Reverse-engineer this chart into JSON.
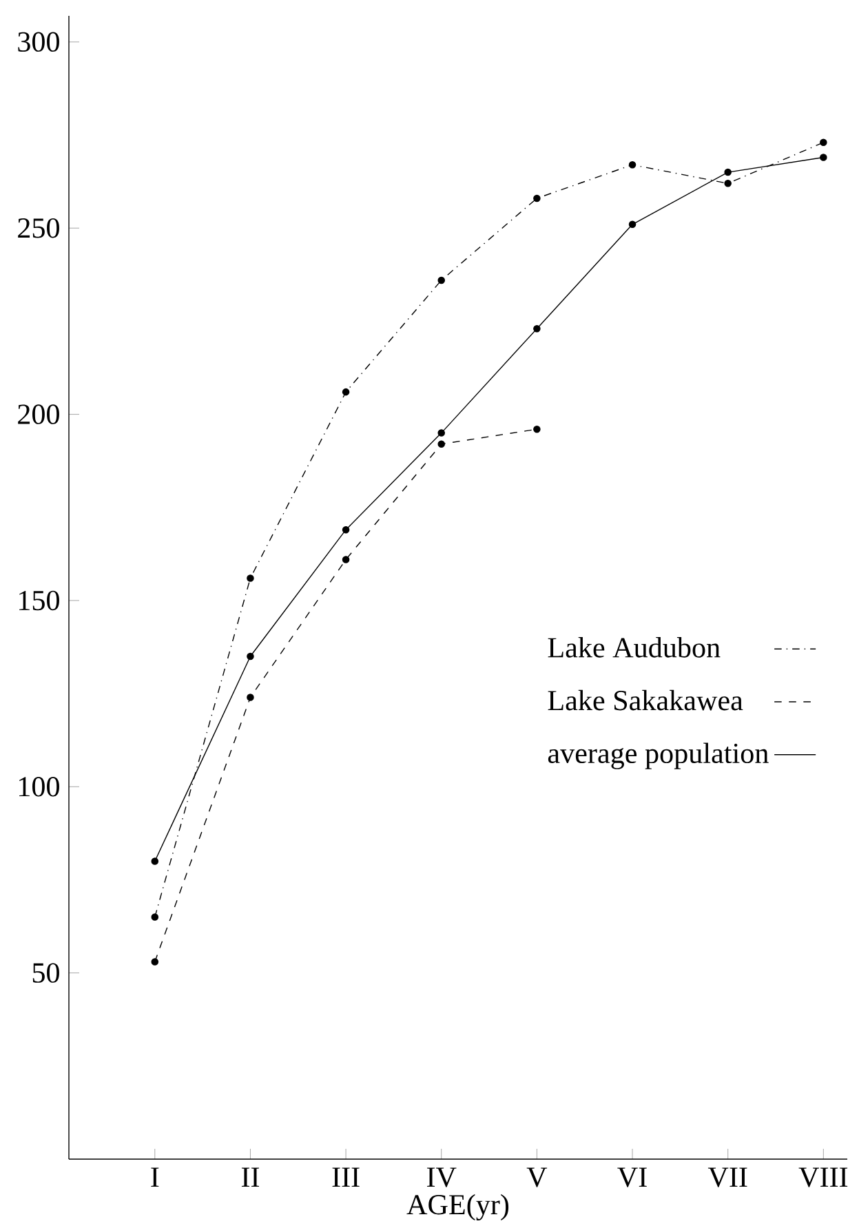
{
  "chart_data": {
    "type": "line",
    "xlabel": "AGE(yr)",
    "categories": [
      "I",
      "II",
      "III",
      "IV",
      "V",
      "VI",
      "VII",
      "VIII"
    ],
    "series": [
      {
        "name": "Lake Audubon",
        "color": "#000000",
        "line_style": "dashdotted",
        "values": [
          65,
          156,
          206,
          236,
          258,
          267,
          262,
          273
        ]
      },
      {
        "name": "Lake Sakakawea",
        "color": "#000000",
        "line_style": "dashed",
        "values": [
          53,
          124,
          161,
          192,
          196,
          null,
          null,
          null
        ]
      },
      {
        "name": "average population",
        "color": "#000000",
        "line_style": "solid",
        "values": [
          80,
          135,
          169,
          195,
          223,
          251,
          265,
          269
        ]
      }
    ],
    "ylim": [
      0,
      307
    ],
    "yticks": [
      50,
      100,
      150,
      200,
      250,
      300
    ],
    "marker": "circle",
    "legend": "center right",
    "grid": false
  }
}
